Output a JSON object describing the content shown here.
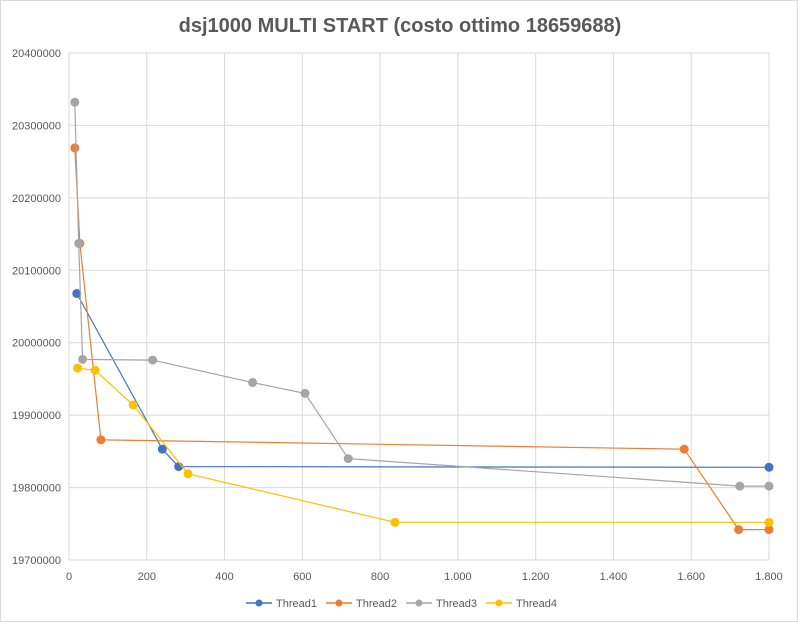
{
  "chart_data": {
    "type": "scatter",
    "title": "dsj1000 MULTI START (costo ottimo 18659688)",
    "xlim": [
      0,
      1800
    ],
    "ylim": [
      19700000,
      20400000
    ],
    "x_ticks": [
      {
        "value": 0,
        "label": "0"
      },
      {
        "value": 200,
        "label": "200"
      },
      {
        "value": 400,
        "label": "400"
      },
      {
        "value": 600,
        "label": "600"
      },
      {
        "value": 800,
        "label": "800"
      },
      {
        "value": 1000,
        "label": "1.000"
      },
      {
        "value": 1200,
        "label": "1.200"
      },
      {
        "value": 1400,
        "label": "1.400"
      },
      {
        "value": 1600,
        "label": "1.600"
      },
      {
        "value": 1800,
        "label": "1.800"
      }
    ],
    "y_ticks": [
      {
        "value": 19700000,
        "label": "19700000"
      },
      {
        "value": 19800000,
        "label": "19800000"
      },
      {
        "value": 19900000,
        "label": "19900000"
      },
      {
        "value": 20000000,
        "label": "20000000"
      },
      {
        "value": 20100000,
        "label": "20100000"
      },
      {
        "value": 20200000,
        "label": "20200000"
      },
      {
        "value": 20300000,
        "label": "20300000"
      },
      {
        "value": 20400000,
        "label": "20400000"
      }
    ],
    "grid": true,
    "legend_position": "bottom",
    "series": [
      {
        "name": "Thread1",
        "color": "#4472C4",
        "points": [
          [
            20,
            20068000
          ],
          [
            240,
            19853000
          ],
          [
            282,
            19829000
          ],
          [
            1800,
            19828000
          ]
        ]
      },
      {
        "name": "Thread2",
        "color": "#ED7D31",
        "points": [
          [
            15,
            20269000
          ],
          [
            28,
            20137000
          ],
          [
            82,
            19866000
          ],
          [
            1582,
            19853000
          ],
          [
            1722,
            19742000
          ],
          [
            1800,
            19742000
          ]
        ]
      },
      {
        "name": "Thread3",
        "color": "#A5A5A5",
        "points": [
          [
            15,
            20332000
          ],
          [
            25,
            20137000
          ],
          [
            35,
            19977000
          ],
          [
            215,
            19976000
          ],
          [
            472,
            19945000
          ],
          [
            607,
            19930000
          ],
          [
            718,
            19840000
          ],
          [
            1725,
            19802000
          ],
          [
            1800,
            19802000
          ]
        ]
      },
      {
        "name": "Thread4",
        "color": "#FFC000",
        "points": [
          [
            22,
            19965000
          ],
          [
            67,
            19962000
          ],
          [
            165,
            19914000
          ],
          [
            306,
            19819000
          ],
          [
            838,
            19752000
          ],
          [
            1800,
            19752000
          ]
        ]
      }
    ]
  }
}
